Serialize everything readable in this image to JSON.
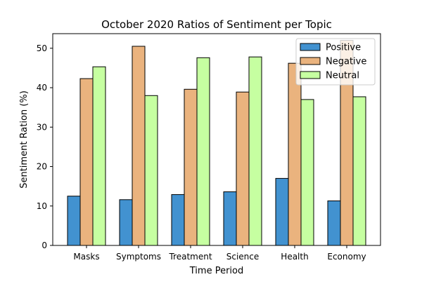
{
  "chart_data": {
    "type": "bar",
    "title": "October 2020 Ratios of Sentiment per Topic",
    "xlabel": "Time Period",
    "ylabel": "Sentiment Ration (%)",
    "categories": [
      "Masks",
      "Symptoms",
      "Treatment",
      "Science",
      "Health",
      "Economy"
    ],
    "ylim": [
      0,
      53.7
    ],
    "yticks": [
      0,
      10,
      20,
      30,
      40,
      50
    ],
    "grid": false,
    "legend_position": "top-right",
    "series": [
      {
        "name": "Positive",
        "color": "#4292d0",
        "values": [
          12.5,
          11.6,
          12.9,
          13.6,
          17.0,
          11.3
        ]
      },
      {
        "name": "Negative",
        "color": "#eab37e",
        "values": [
          42.3,
          50.5,
          39.6,
          38.9,
          46.2,
          52.0
        ]
      },
      {
        "name": "Neutral",
        "color": "#c6ffa1",
        "values": [
          45.3,
          38.0,
          47.6,
          47.8,
          37.0,
          37.7
        ]
      }
    ]
  }
}
